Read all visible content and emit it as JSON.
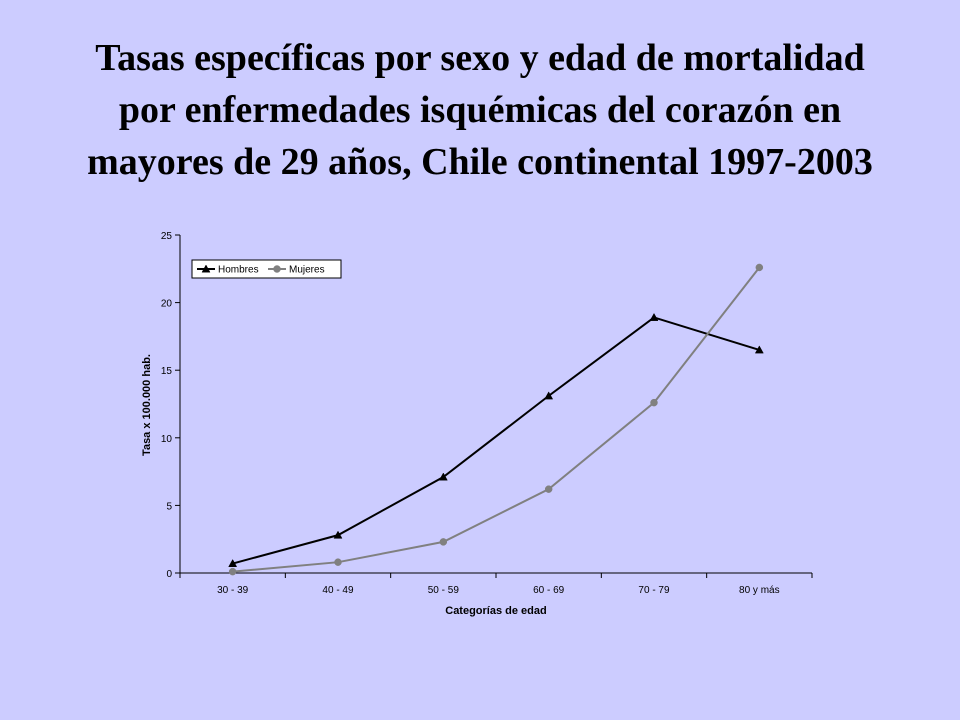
{
  "slide": {
    "title_lines": [
      "Tasas específicas por sexo y edad de mortalidad",
      "por enfermedades isquémicas del corazón en",
      "mayores de 29 años, Chile continental 1997-2003"
    ]
  },
  "chart_data": {
    "type": "line",
    "title": "Tasas específicas por sexo y edad de mortalidad por enfermedades isquémicas del corazón en mayores de 29 años, Chile continental 1997-2003",
    "xlabel": "Categorías de edad",
    "ylabel": "Tasa x 100.000 hab.",
    "categories": [
      "30 - 39",
      "40 - 49",
      "50 - 59",
      "60 - 69",
      "70 - 79",
      "80 y más"
    ],
    "ylim": [
      0,
      25
    ],
    "yticks": [
      0,
      5,
      10,
      15,
      20,
      25
    ],
    "grid": false,
    "legend_position": "top-left",
    "series": [
      {
        "name": "Hombres",
        "marker": "triangle",
        "color": "#000000",
        "values": [
          0.7,
          2.8,
          7.1,
          13.1,
          18.9,
          16.5
        ]
      },
      {
        "name": "Mujeres",
        "marker": "circle",
        "color": "#808080",
        "values": [
          0.1,
          0.8,
          2.3,
          6.2,
          12.6,
          22.6
        ]
      }
    ]
  }
}
